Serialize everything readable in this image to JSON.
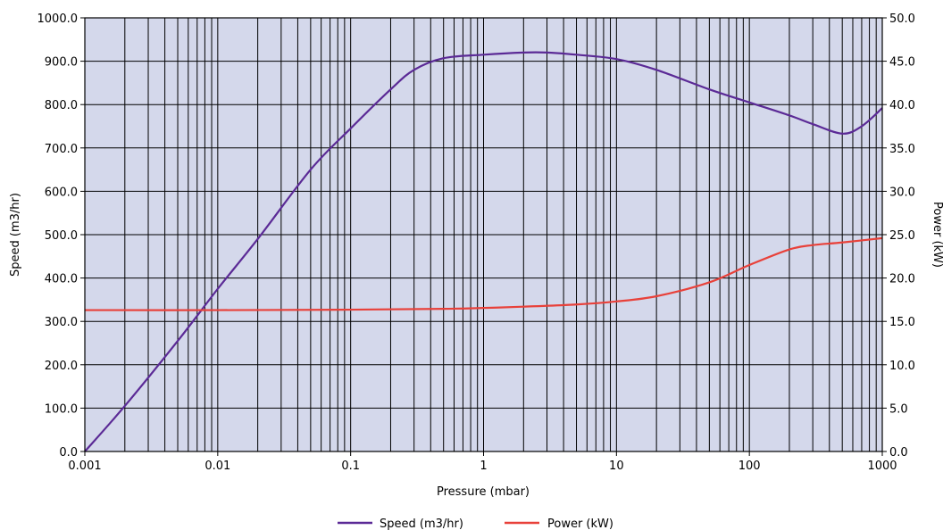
{
  "chart_data": {
    "type": "line",
    "xlabel": "Pressure (mbar)",
    "ylabel_left": "Speed (m3/hr)",
    "ylabel_right": "Power (kW)",
    "x_scale": "log",
    "xlim": [
      0.001,
      1000
    ],
    "ylim_left": [
      0,
      1000
    ],
    "ylim_right": [
      0,
      50
    ],
    "x_ticks": [
      0.001,
      0.01,
      0.1,
      1,
      10,
      100,
      1000
    ],
    "x_tick_labels": [
      "0.001",
      "0.01",
      "0.1",
      "1",
      "10",
      "100",
      "1000"
    ],
    "y_left_ticks": [
      0,
      100,
      200,
      300,
      400,
      500,
      600,
      700,
      800,
      900,
      1000
    ],
    "y_left_tick_labels": [
      "0.0",
      "100.0",
      "200.0",
      "300.0",
      "400.0",
      "500.0",
      "600.0",
      "700.0",
      "800.0",
      "900.0",
      "1000.0"
    ],
    "y_right_ticks": [
      0,
      5,
      10,
      15,
      20,
      25,
      30,
      35,
      40,
      45,
      50
    ],
    "y_right_tick_labels": [
      "0.0",
      "5.0",
      "10.0",
      "15.0",
      "20.0",
      "25.0",
      "30.0",
      "35.0",
      "40.0",
      "45.0",
      "50.0"
    ],
    "grid": true,
    "legend_position": "bottom-center",
    "plot_background": "#d4d8eb",
    "series": [
      {
        "name": "Speed (m3/hr)",
        "axis": "left",
        "color": "#5b2a96",
        "x": [
          0.001,
          0.002,
          0.005,
          0.01,
          0.02,
          0.05,
          0.1,
          0.2,
          0.3,
          0.5,
          1,
          2,
          3,
          5,
          10,
          20,
          50,
          100,
          200,
          300,
          500,
          700,
          1000
        ],
        "y": [
          0,
          105,
          255,
          375,
          490,
          650,
          745,
          835,
          880,
          907,
          915,
          920,
          920,
          915,
          905,
          880,
          835,
          805,
          775,
          755,
          733,
          750,
          792
        ]
      },
      {
        "name": "Power (kW)",
        "axis": "right",
        "color": "#e8413a",
        "x": [
          0.001,
          0.01,
          0.1,
          0.5,
          1,
          2,
          5,
          10,
          20,
          50,
          100,
          200,
          300,
          500,
          1000
        ],
        "y": [
          16.3,
          16.3,
          16.35,
          16.45,
          16.55,
          16.7,
          16.95,
          17.3,
          17.9,
          19.5,
          21.5,
          23.3,
          23.8,
          24.1,
          24.6
        ]
      }
    ]
  }
}
